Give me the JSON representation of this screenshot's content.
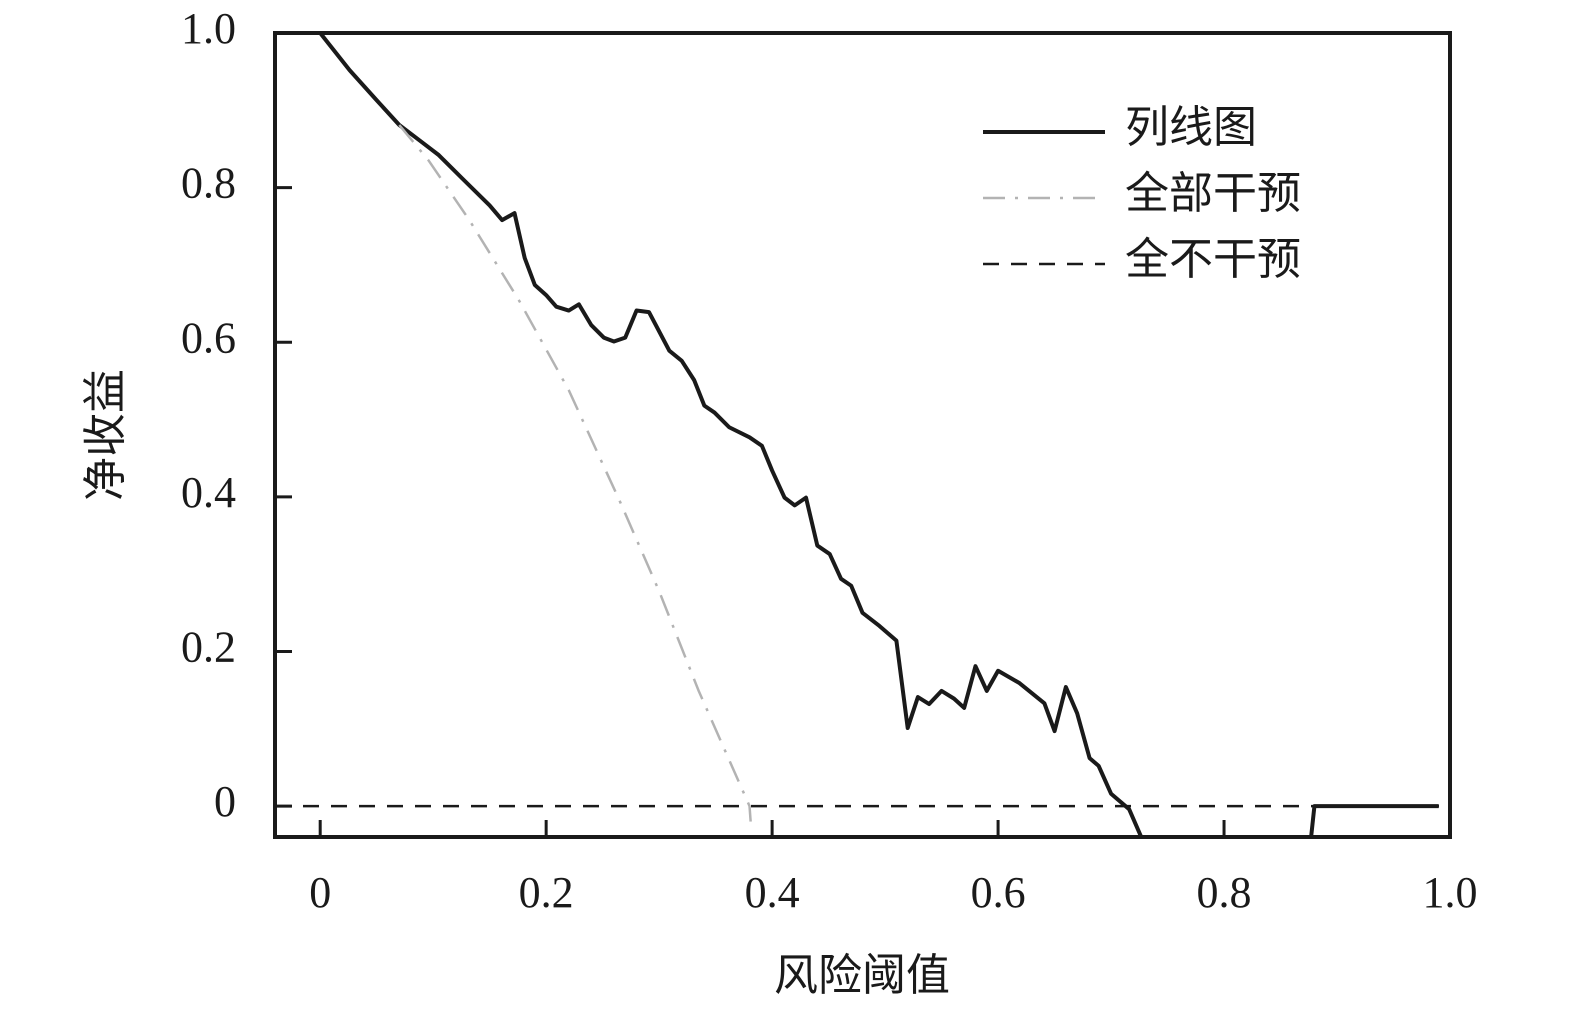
{
  "chart_data": {
    "type": "line",
    "x_label": "风险阈值",
    "y_label": "净收益",
    "xlim": [
      -0.04,
      1.0
    ],
    "ylim": [
      -0.04,
      1.0
    ],
    "xticks": [
      0,
      0.2,
      0.4,
      0.6,
      0.8,
      {
        "value": 1,
        "label": "1.0"
      }
    ],
    "yticks": [
      0,
      0.2,
      0.4,
      0.6,
      0.8,
      {
        "value": 1,
        "label": "1.0"
      }
    ],
    "legend": "upper right",
    "series": [
      {
        "name": "列线图",
        "color": "#1a1a1a",
        "style": "solid",
        "x": [
          0,
          0.026,
          0.05,
          0.07,
          0.088,
          0.105,
          0.127,
          0.15,
          0.161,
          0.172,
          0.181,
          0.19,
          0.2,
          0.209,
          0.22,
          0.229,
          0.24,
          0.251,
          0.26,
          0.27,
          0.28,
          0.291,
          0.309,
          0.32,
          0.331,
          0.34,
          0.349,
          0.362,
          0.38,
          0.391,
          0.4,
          0.411,
          0.42,
          0.43,
          0.44,
          0.451,
          0.461,
          0.47,
          0.48,
          0.495,
          0.51,
          0.52,
          0.529,
          0.539,
          0.55,
          0.561,
          0.57,
          0.58,
          0.59,
          0.6,
          0.619,
          0.641,
          0.65,
          0.66,
          0.67,
          0.681,
          0.689,
          0.7,
          0.716,
          0.727,
          0.8,
          0.877,
          0.88,
          0.99
        ],
        "values": [
          1.0,
          0.952,
          0.913,
          0.881,
          0.861,
          0.842,
          0.81,
          0.777,
          0.758,
          0.767,
          0.709,
          0.674,
          0.661,
          0.646,
          0.641,
          0.649,
          0.622,
          0.606,
          0.601,
          0.606,
          0.641,
          0.639,
          0.589,
          0.576,
          0.551,
          0.518,
          0.509,
          0.49,
          0.477,
          0.466,
          0.434,
          0.399,
          0.389,
          0.399,
          0.337,
          0.326,
          0.294,
          0.285,
          0.25,
          0.233,
          0.214,
          0.101,
          0.141,
          0.132,
          0.149,
          0.139,
          0.127,
          0.181,
          0.149,
          0.175,
          0.159,
          0.133,
          0.097,
          0.154,
          0.12,
          0.062,
          0.052,
          0.016,
          -0.004,
          -0.041,
          null,
          -0.041,
          0,
          0
        ]
      },
      {
        "name": "全部干预",
        "color": "#b3b3b3",
        "style": "dashdot",
        "x": [
          0.07,
          0.096,
          0.132,
          0.176,
          0.22,
          0.265,
          0.3,
          0.335,
          0.38,
          0.381
        ],
        "values": [
          0.881,
          0.835,
          0.758,
          0.654,
          0.538,
          0.395,
          0.278,
          0.149,
          0,
          -0.02
        ]
      },
      {
        "name": "全不干预",
        "color": "#1a1a1a",
        "style": "dashed",
        "x": [
          -0.04,
          1.0
        ],
        "values": [
          0,
          0
        ]
      }
    ]
  }
}
